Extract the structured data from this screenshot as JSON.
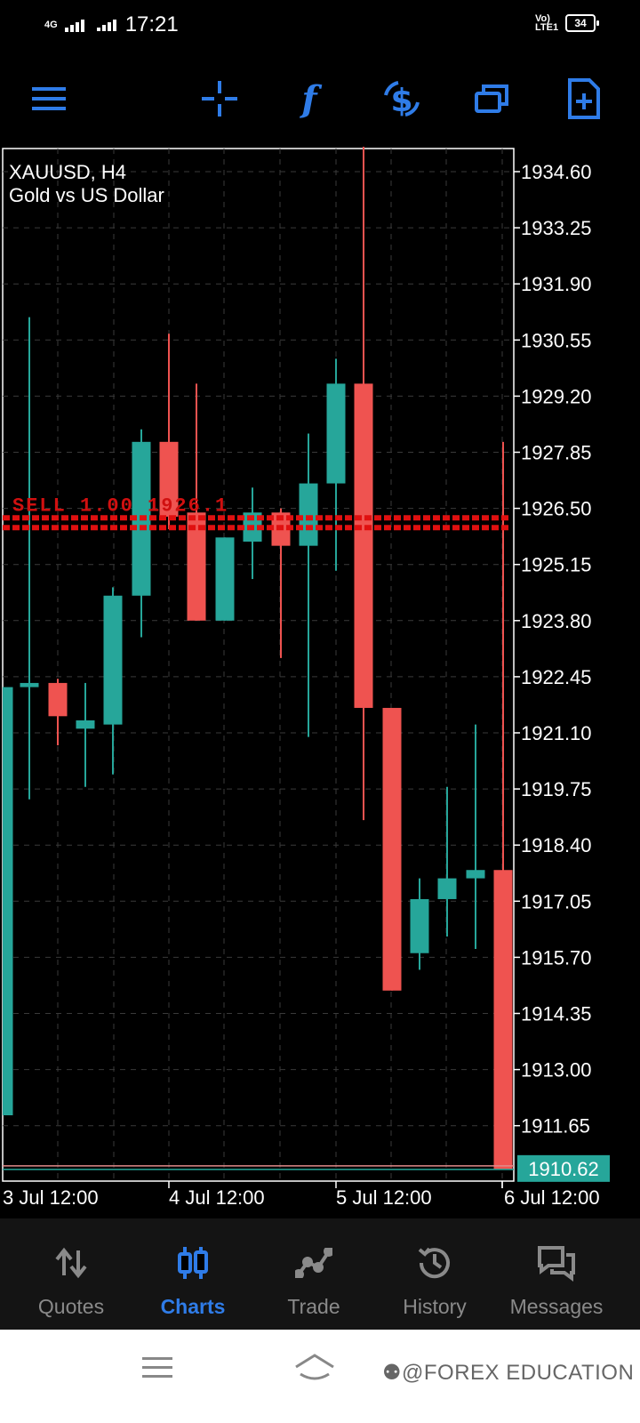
{
  "status_bar": {
    "network": "4G",
    "time": "17:21",
    "volte": "Vo) LTE1",
    "battery": "34"
  },
  "toolbar": {
    "icons": [
      "menu-icon",
      "crosshair-icon",
      "indicators-icon",
      "trade-icon",
      "windows-icon",
      "new-chart-icon"
    ],
    "accent": "#2f7ce8"
  },
  "chart": {
    "symbol": "XAUUSD, H4",
    "description": "Gold vs US Dollar",
    "current_price": "1910.62",
    "order_line_label": "SELL 1.00 1926.1",
    "bull_color": "#26a69a",
    "bear_color": "#ef5350"
  },
  "chart_data": {
    "type": "candlestick",
    "title": "XAUUSD, H4",
    "subtitle": "Gold vs US Dollar",
    "y_ticks": [
      "1934.60",
      "1933.25",
      "1931.90",
      "1930.55",
      "1929.20",
      "1927.85",
      "1926.50",
      "1925.15",
      "1923.80",
      "1922.45",
      "1921.10",
      "1919.75",
      "1918.40",
      "1917.05",
      "1915.70",
      "1914.35",
      "1913.00",
      "1911.65"
    ],
    "x_ticks": [
      "3 Jul 12:00",
      "4 Jul 12:00",
      "5 Jul 12:00",
      "6 Jul 12:00"
    ],
    "ylim": [
      1909.9,
      1935.4
    ],
    "candles": [
      {
        "o": 1911.9,
        "h": 1922.2,
        "l": 1911.9,
        "c": 1922.2
      },
      {
        "o": 1922.2,
        "h": 1931.1,
        "l": 1919.5,
        "c": 1922.3
      },
      {
        "o": 1922.3,
        "h": 1922.4,
        "l": 1920.8,
        "c": 1921.5
      },
      {
        "o": 1921.2,
        "h": 1922.3,
        "l": 1919.8,
        "c": 1921.4
      },
      {
        "o": 1921.3,
        "h": 1924.6,
        "l": 1920.1,
        "c": 1924.4
      },
      {
        "o": 1924.4,
        "h": 1928.4,
        "l": 1923.4,
        "c": 1928.1
      },
      {
        "o": 1928.1,
        "h": 1930.7,
        "l": 1926.0,
        "c": 1926.3
      },
      {
        "o": 1926.4,
        "h": 1929.5,
        "l": 1923.8,
        "c": 1923.8
      },
      {
        "o": 1923.8,
        "h": 1925.8,
        "l": 1923.8,
        "c": 1925.8
      },
      {
        "o": 1925.7,
        "h": 1927.0,
        "l": 1924.8,
        "c": 1926.4
      },
      {
        "o": 1926.4,
        "h": 1926.5,
        "l": 1922.9,
        "c": 1925.6
      },
      {
        "o": 1925.6,
        "h": 1928.3,
        "l": 1921.0,
        "c": 1927.1
      },
      {
        "o": 1927.1,
        "h": 1930.1,
        "l": 1925.0,
        "c": 1929.5
      },
      {
        "o": 1929.5,
        "h": 1935.2,
        "l": 1919.0,
        "c": 1921.7
      },
      {
        "o": 1921.7,
        "h": 1921.7,
        "l": 1914.9,
        "c": 1914.9
      },
      {
        "o": 1915.8,
        "h": 1917.6,
        "l": 1915.4,
        "c": 1917.1
      },
      {
        "o": 1917.1,
        "h": 1919.8,
        "l": 1916.2,
        "c": 1917.6
      },
      {
        "o": 1917.6,
        "h": 1921.3,
        "l": 1915.9,
        "c": 1917.8
      },
      {
        "o": 1917.8,
        "h": 1928.1,
        "l": 1910.6,
        "c": 1910.6
      }
    ]
  },
  "bottom_nav": {
    "items": [
      {
        "label": "Quotes",
        "icon": "quotes-icon"
      },
      {
        "label": "Charts",
        "icon": "charts-icon",
        "active": true
      },
      {
        "label": "Trade",
        "icon": "trade-line-icon"
      },
      {
        "label": "History",
        "icon": "history-icon"
      },
      {
        "label": "Messages",
        "icon": "messages-icon"
      }
    ]
  },
  "system_nav": {
    "watermark": "⚉@FOREX EDUCATION"
  }
}
